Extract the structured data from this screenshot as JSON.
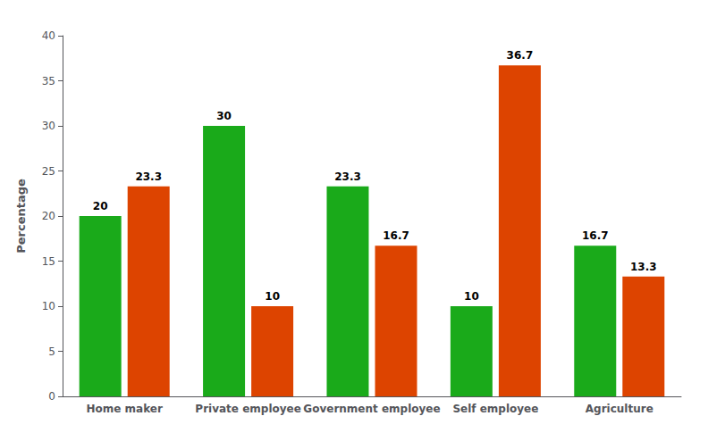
{
  "chart_data": {
    "type": "bar",
    "categories": [
      "Home maker",
      "Private employee",
      "Government employee",
      "Self employee",
      "Agriculture"
    ],
    "series": [
      {
        "color": "#1aaa1a",
        "values": [
          20,
          30,
          23.3,
          10,
          16.7
        ]
      },
      {
        "color": "#dd4400",
        "values": [
          23.3,
          10,
          16.7,
          36.7,
          13.3
        ]
      }
    ],
    "ylabel": "Percentage",
    "ylim": [
      0,
      40
    ],
    "yticks": [
      0,
      5,
      10,
      15,
      20,
      25,
      30,
      35,
      40
    ],
    "data_labels": true,
    "grid": false
  }
}
